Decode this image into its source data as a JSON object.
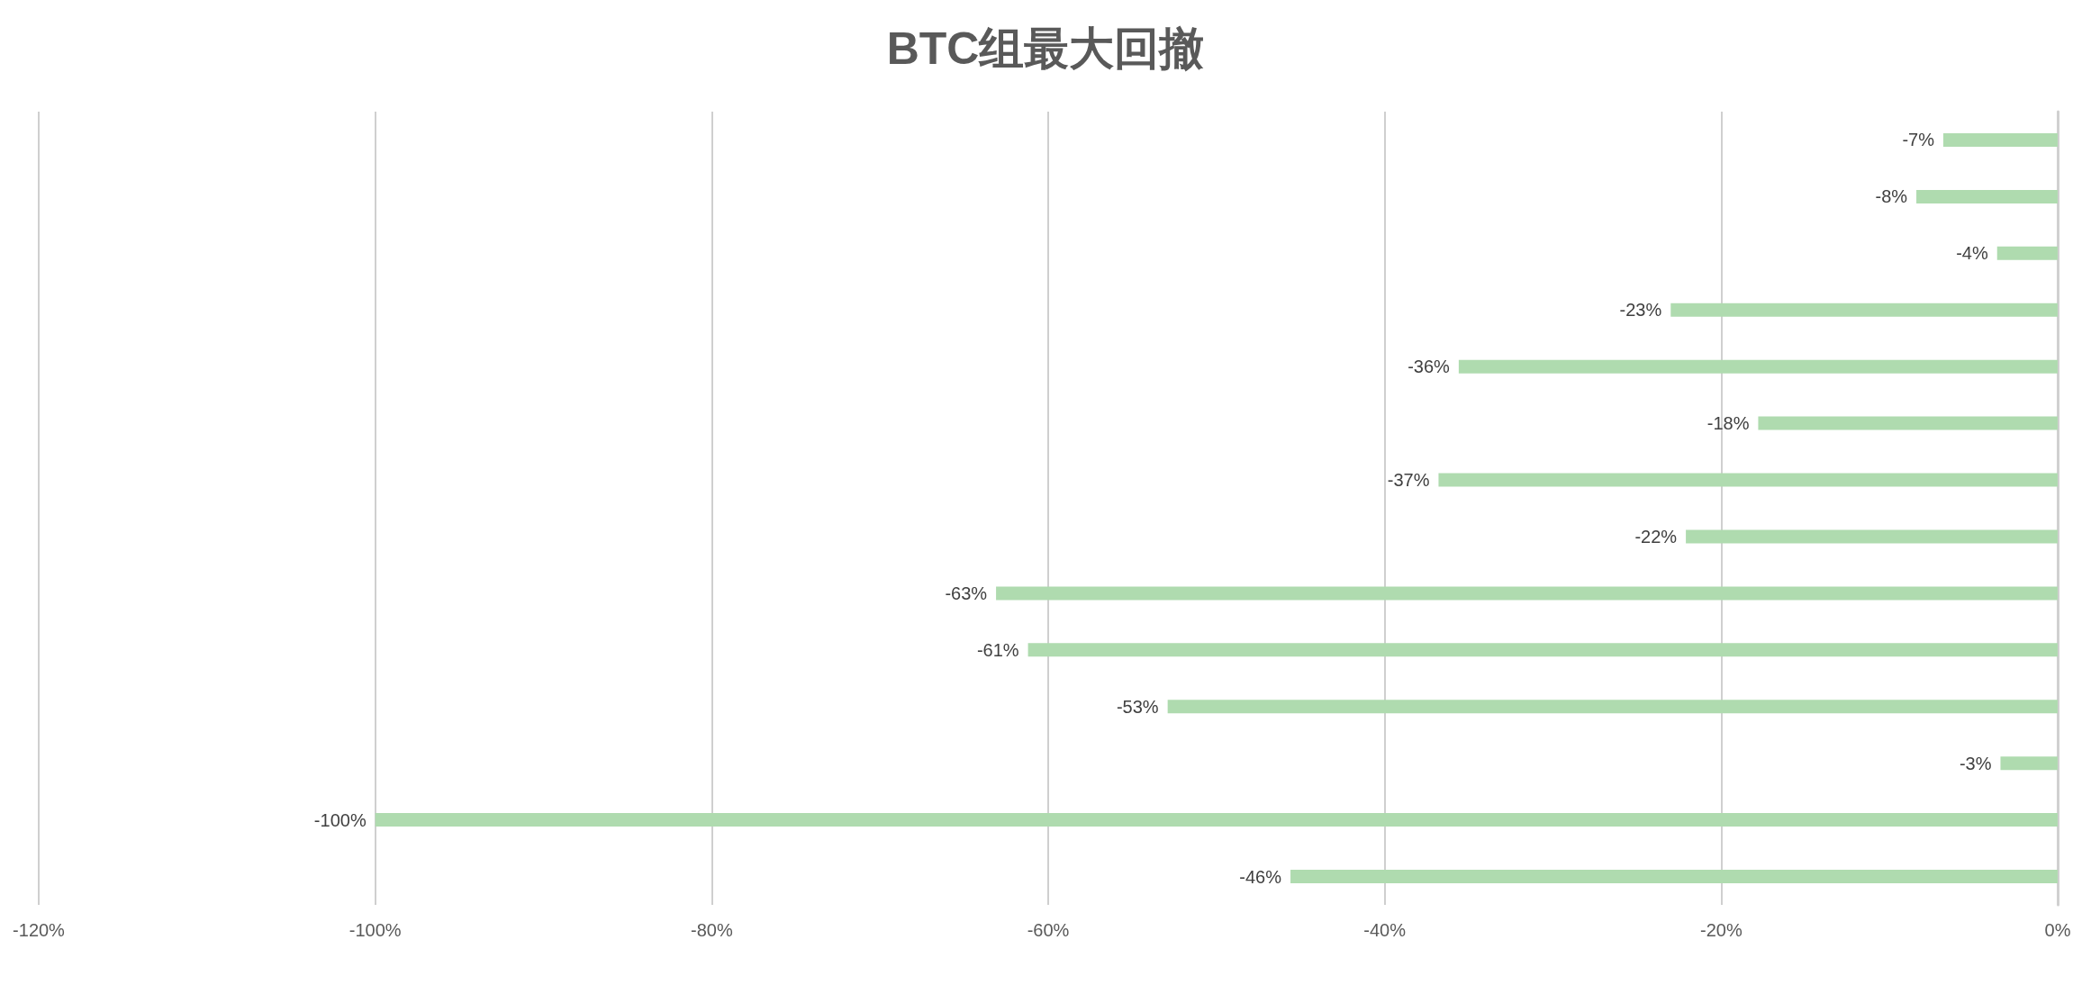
{
  "chart_data": {
    "type": "bar",
    "orientation": "horizontal",
    "title": "BTC组最大回撤",
    "categories": [
      null,
      null,
      null,
      null,
      null,
      null,
      null,
      null,
      null,
      null,
      null,
      null,
      null,
      null
    ],
    "values": [
      -6.8,
      -8.4,
      -3.6,
      -23.0,
      -35.6,
      -17.8,
      -36.8,
      -22.1,
      -63.1,
      -61.2,
      -52.9,
      -3.4,
      -100,
      -45.6
    ],
    "value_labels": [
      "-7%",
      "-8%",
      "-4%",
      "-23%",
      "-36%",
      "-18%",
      "-37%",
      "-22%",
      "-63%",
      "-61%",
      "-53%",
      "-3%",
      "-100%",
      "-46%"
    ],
    "color": "#afdbaf",
    "xlim": [
      -120,
      0
    ],
    "xticks": [
      {
        "value": -120,
        "label": "-120%"
      },
      {
        "value": -100,
        "label": "-100%"
      },
      {
        "value": -80,
        "label": "-80%"
      },
      {
        "value": -60,
        "label": "-60%"
      },
      {
        "value": -40,
        "label": "-40%"
      },
      {
        "value": -20,
        "label": "-20%"
      },
      {
        "value": 0,
        "label": "0%"
      }
    ],
    "grid": "x",
    "tick_labels": "x"
  }
}
